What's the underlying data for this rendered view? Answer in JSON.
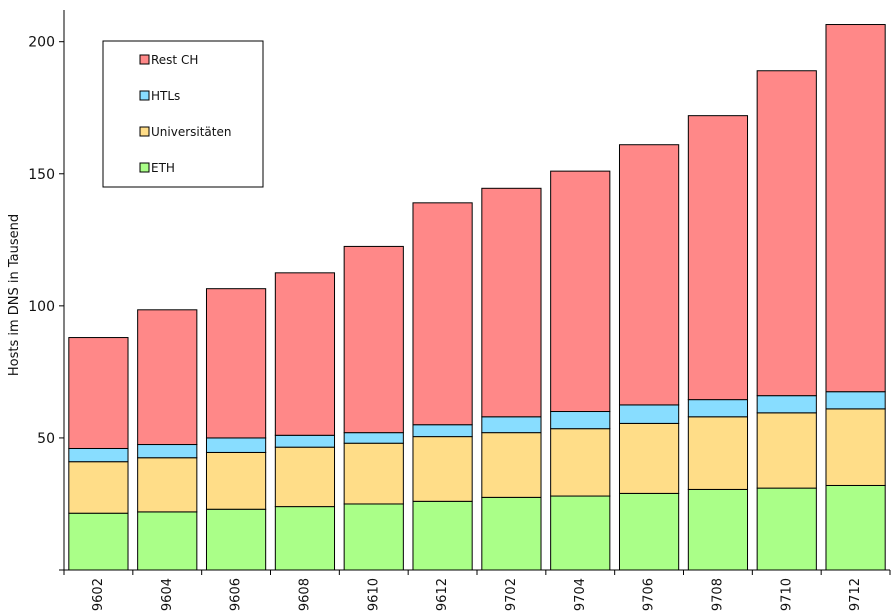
{
  "chart_data": {
    "type": "bar",
    "stacked": true,
    "title": "",
    "xlabel": "",
    "ylabel": "Hosts im DNS in Tausend",
    "ylim": [
      0,
      212
    ],
    "yticks": [
      50,
      100,
      150,
      200
    ],
    "categories": [
      "9602",
      "9604",
      "9606",
      "9608",
      "9610",
      "9612",
      "9702",
      "9704",
      "9706",
      "9708",
      "9710",
      "9712"
    ],
    "series": [
      {
        "name": "ETH",
        "color": "#aaff88",
        "values": [
          21.5,
          22,
          23,
          24,
          25,
          26,
          27.5,
          28,
          29,
          30.5,
          31,
          32
        ]
      },
      {
        "name": "Universitäten",
        "color": "#ffdd88",
        "values": [
          19.5,
          20.5,
          21.5,
          22.5,
          23,
          24.5,
          24.5,
          25.5,
          26.5,
          27.5,
          28.5,
          29
        ]
      },
      {
        "name": "HTLs",
        "color": "#88ddff",
        "values": [
          5,
          5,
          5.5,
          4.5,
          4,
          4.5,
          6,
          6.5,
          7,
          6.5,
          6.5,
          6.5
        ]
      },
      {
        "name": "Rest CH",
        "color": "#ff8888",
        "values": [
          42,
          51,
          56.5,
          61.5,
          70.5,
          84,
          86.5,
          91,
          98.5,
          107.5,
          123,
          139
        ]
      }
    ],
    "legend": {
      "placement": "top-left",
      "order": [
        "Rest CH",
        "HTLs",
        "Universitäten",
        "ETH"
      ]
    },
    "grid": false
  }
}
